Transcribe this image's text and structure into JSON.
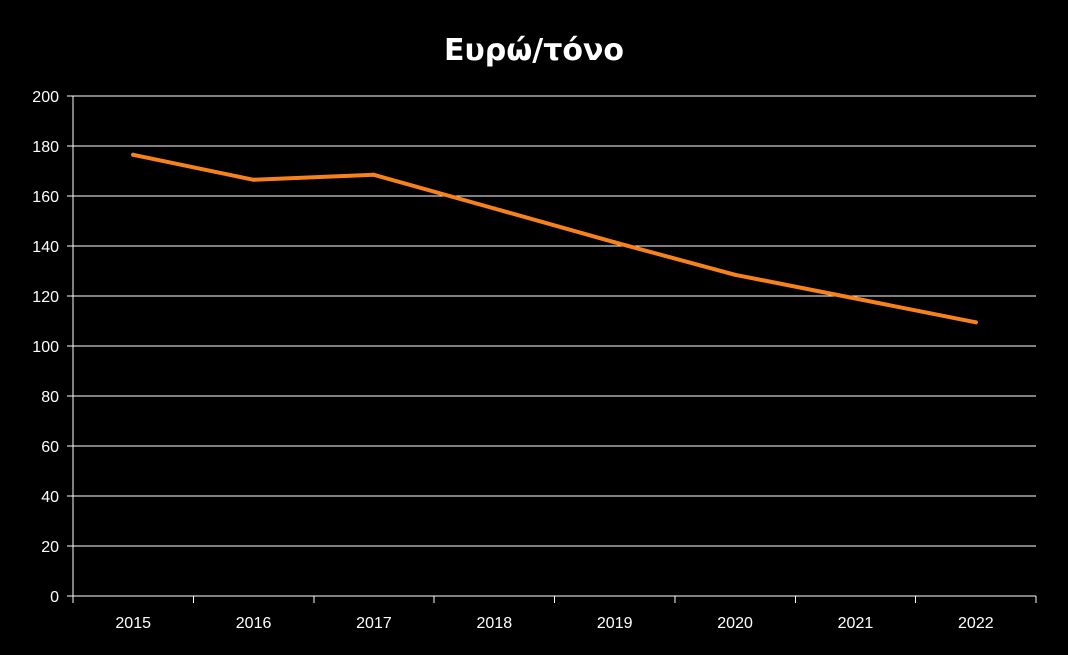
{
  "chart_data": {
    "type": "line",
    "title": "Ευρώ/τόνο",
    "xlabel": "",
    "ylabel": "",
    "categories": [
      "2015",
      "2016",
      "2017",
      "2018",
      "2019",
      "2020",
      "2021",
      "2022"
    ],
    "series": [
      {
        "values": [
          176.5,
          166.5,
          168.5,
          155,
          141.5,
          128.5,
          119,
          109.5
        ],
        "color": "#f7821b"
      }
    ],
    "ylim": [
      0,
      200
    ],
    "y_ticks": [
      "0",
      "20",
      "40",
      "60",
      "80",
      "100",
      "120",
      "140",
      "160",
      "180",
      "200"
    ],
    "grid": true,
    "legend": "none",
    "background_color": "#000000",
    "text_color": "#ffffff",
    "grid_color": "#ffffff"
  }
}
